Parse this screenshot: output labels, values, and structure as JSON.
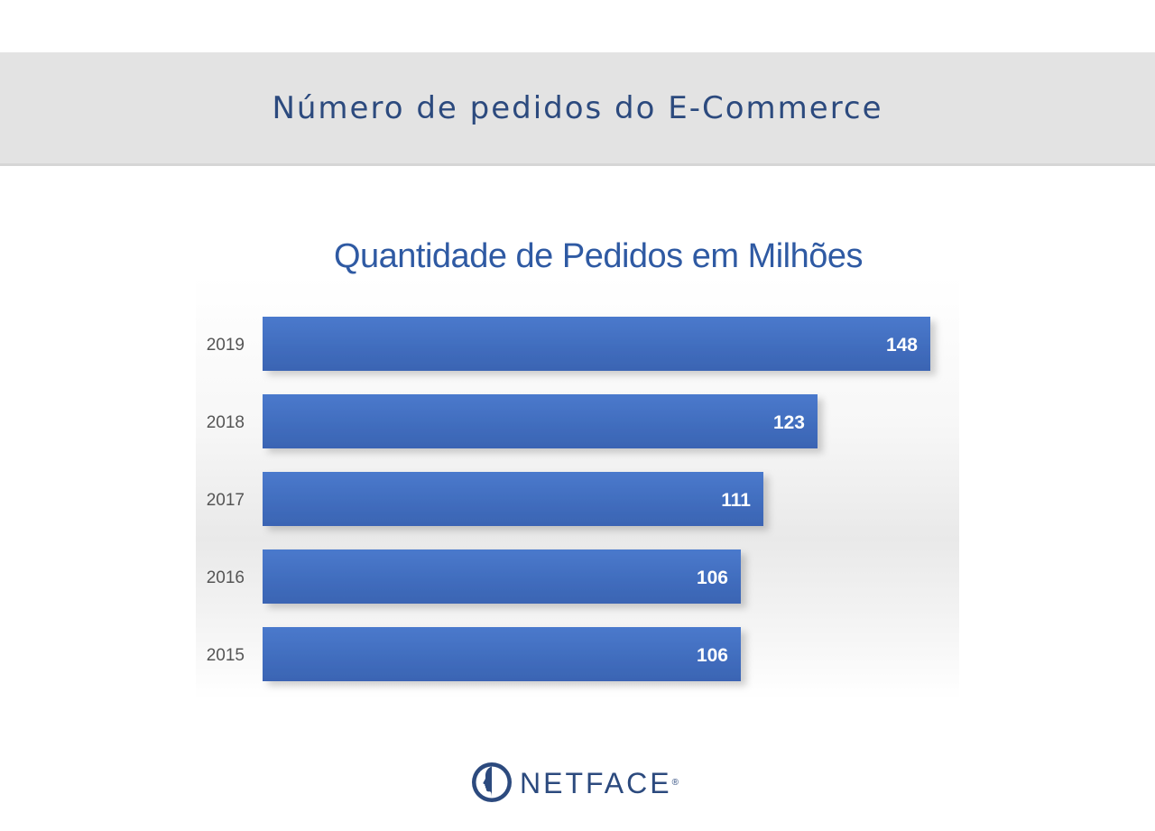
{
  "header": {
    "title": "Número de pedidos do E-Commerce"
  },
  "chart_data": {
    "type": "bar",
    "orientation": "horizontal",
    "title": "Quantidade de Pedidos em Milhões",
    "categories": [
      "2019",
      "2018",
      "2017",
      "2016",
      "2015"
    ],
    "values": [
      148,
      123,
      111,
      106,
      106
    ],
    "data_labels": [
      "148",
      "123",
      "111",
      "106",
      "106"
    ],
    "xlim": [
      0,
      148
    ],
    "grid": false,
    "legend": "none",
    "bar_color": "#4472c4"
  },
  "logo": {
    "text": "NETFACE",
    "icon": "face-profile-icon"
  }
}
